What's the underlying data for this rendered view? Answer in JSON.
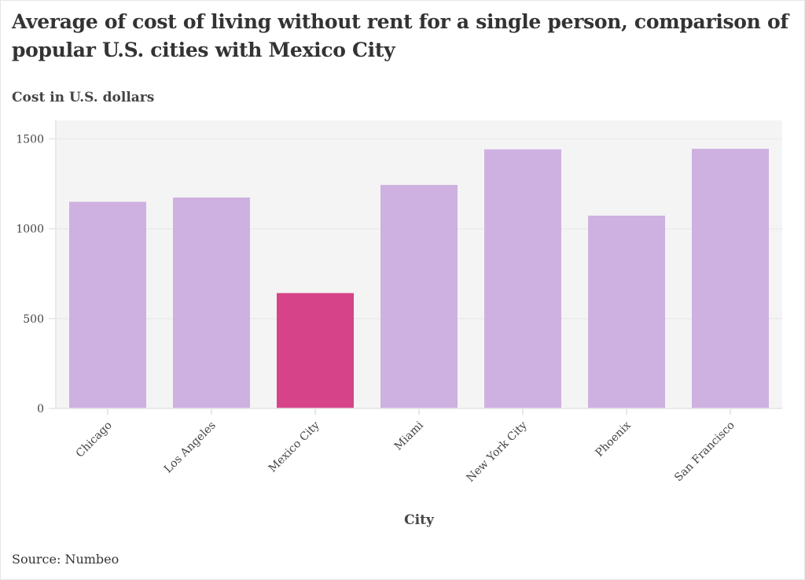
{
  "chart_data": {
    "type": "bar",
    "title": "Average of cost of living without rent for a single person, comparison of popular U.S. cities with Mexico City",
    "subtitle": "Cost in U.S. dollars",
    "xlabel": "City",
    "ylabel": "Cost in U.S. dollars",
    "categories": [
      "Chicago",
      "Los Angeles",
      "Mexico City",
      "Miami",
      "New York City",
      "Phoenix",
      "San Francisco"
    ],
    "values": [
      1150,
      1174,
      642,
      1244,
      1442,
      1073,
      1445
    ],
    "highlight": "Mexico City",
    "ylim": [
      0,
      1600
    ],
    "yticks": [
      0,
      500,
      1000,
      1500
    ],
    "ytick_labels": [
      "0",
      "500",
      "1000",
      "1500"
    ],
    "grid": true,
    "legend": "none",
    "colors": {
      "default_bar": "#cfb1e1",
      "highlight_bar": "#d64388",
      "plot_background": "#f4f4f4",
      "grid": "#ebebeb"
    }
  },
  "source": "Source: Numbeo"
}
